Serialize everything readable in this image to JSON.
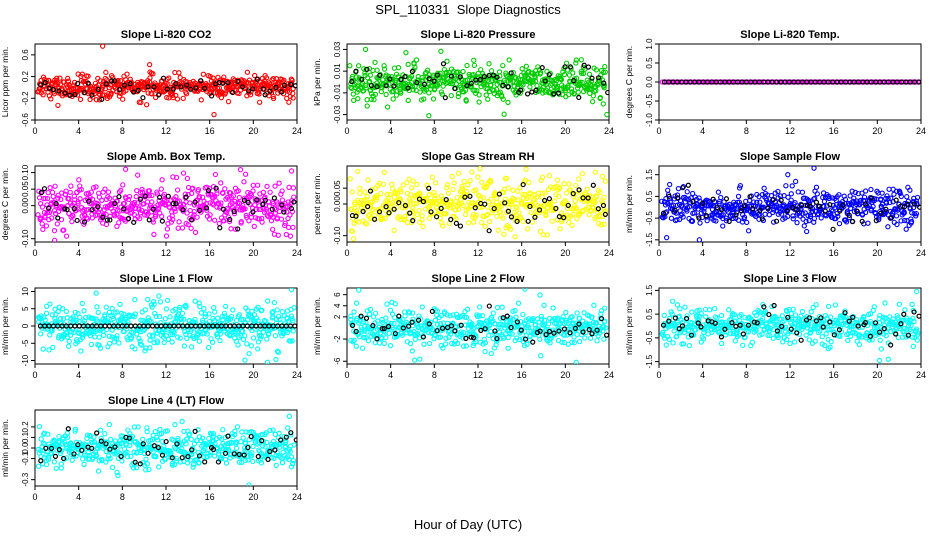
{
  "title": "SPL_110331  Slope Diagnostics",
  "xlabel": "Hour of Day (UTC)",
  "chart_data": [
    {
      "type": "scatter",
      "title": "Slope Li-820 CO2",
      "ylabel": "Licor ppm per min.",
      "color": "#ff0000",
      "xlim": [
        0,
        24
      ],
      "xticks": [
        0,
        4,
        8,
        12,
        16,
        20,
        24
      ],
      "ylim": [
        -0.6,
        0.8
      ],
      "yticks": [
        -0.6,
        -0.2,
        0.2,
        0.6
      ],
      "yticklabels": [
        "-0.6",
        "-0.2",
        "0.2",
        "0.6"
      ],
      "spread": 0.11,
      "outliers": [
        [
          6.2,
          0.76
        ],
        [
          16.4,
          -0.5
        ],
        [
          2.1,
          -0.33
        ],
        [
          10.5,
          0.42
        ]
      ],
      "black_pattern": "scatter"
    },
    {
      "type": "scatter",
      "title": "Slope Li-820 Pressure",
      "ylabel": "kPa per min.",
      "color": "#00cc00",
      "xlim": [
        0,
        24
      ],
      "xticks": [
        0,
        4,
        8,
        12,
        16,
        20,
        24
      ],
      "ylim": [
        -0.035,
        0.035
      ],
      "yticks": [
        -0.03,
        -0.01,
        0.01,
        0.03
      ],
      "yticklabels": [
        "-0.03",
        "-0.01",
        "0.01",
        "0.03"
      ],
      "spread": 0.008,
      "outliers": [
        [
          1.7,
          0.03
        ],
        [
          7.5,
          -0.031
        ],
        [
          5.4,
          0.027
        ],
        [
          23.8,
          -0.03
        ]
      ],
      "black_pattern": "scatter"
    },
    {
      "type": "scatter",
      "title": "Slope Li-820 Temp.",
      "ylabel": "degrees C per min.",
      "color": "#ff00ff",
      "xlim": [
        0,
        24
      ],
      "xticks": [
        0,
        4,
        8,
        12,
        16,
        20,
        24
      ],
      "ylim": [
        -1.0,
        1.0
      ],
      "yticks": [
        -1.0,
        -0.5,
        0.0,
        0.5,
        1.0
      ],
      "yticklabels": [
        "-1.0",
        "-0.5",
        "0.0",
        "0.5",
        "1.0"
      ],
      "spread": 0.0,
      "outliers": [],
      "black_pattern": "flat"
    },
    {
      "type": "scatter",
      "title": "Slope Amb. Box Temp.",
      "ylabel": "degrees C per min.",
      "color": "#ff00ff",
      "xlim": [
        0,
        24
      ],
      "xticks": [
        0,
        4,
        8,
        12,
        16,
        20,
        24
      ],
      "ylim": [
        -0.11,
        0.12
      ],
      "yticks": [
        -0.1,
        0.0,
        0.05,
        0.1
      ],
      "yticklabels": [
        "-0.10",
        "0.00",
        "0.05",
        "0.10"
      ],
      "spread": 0.035,
      "outliers": [
        [
          8.3,
          0.11
        ],
        [
          1.8,
          -0.105
        ],
        [
          23.5,
          0.105
        ]
      ],
      "black_pattern": "scatter"
    },
    {
      "type": "scatter",
      "title": "Slope Gas Stream RH",
      "ylabel": "percent per min.",
      "color": "#ffff00",
      "xlim": [
        0,
        24
      ],
      "xticks": [
        0,
        4,
        8,
        12,
        16,
        20,
        24
      ],
      "ylim": [
        -0.12,
        0.12
      ],
      "yticks": [
        -0.1,
        0.0,
        0.05
      ],
      "yticklabels": [
        "-0.10",
        "0.00",
        "0.05"
      ],
      "spread": 0.04,
      "outliers": [
        [
          16.4,
          0.11
        ],
        [
          0.6,
          -0.11
        ]
      ],
      "black_pattern": "scatter"
    },
    {
      "type": "scatter",
      "title": "Slope Sample Flow",
      "ylabel": "ml/min per min.",
      "color": "#0000ff",
      "xlim": [
        0,
        24
      ],
      "xticks": [
        0,
        4,
        8,
        12,
        16,
        20,
        24
      ],
      "ylim": [
        -1.6,
        1.9
      ],
      "yticks": [
        -1.5,
        -0.5,
        0.5,
        1.5
      ],
      "yticklabels": [
        "-1.5",
        "-0.5",
        "0.5",
        "1.5"
      ],
      "spread": 0.4,
      "outliers": [
        [
          14.2,
          1.8
        ],
        [
          3.7,
          -1.5
        ],
        [
          11.8,
          1.5
        ],
        [
          0.7,
          -1.4
        ]
      ],
      "black_pattern": "scatter"
    },
    {
      "type": "scatter",
      "title": "Slope Line 1 Flow",
      "ylabel": "ml/min per min.",
      "color": "#00ffff",
      "xlim": [
        0,
        24
      ],
      "xticks": [
        0,
        4,
        8,
        12,
        16,
        20,
        24
      ],
      "ylim": [
        -11,
        11
      ],
      "yticks": [
        -10,
        -5,
        0,
        5,
        10
      ],
      "yticklabels": [
        "-10",
        "-5",
        "0",
        "5",
        "10"
      ],
      "spread": 3.2,
      "outliers": [
        [
          23.5,
          10.5
        ],
        [
          21.3,
          -10.5
        ],
        [
          5.6,
          9.5
        ]
      ],
      "black_pattern": "flat"
    },
    {
      "type": "scatter",
      "title": "Slope Line 2 Flow",
      "ylabel": "ml/min per min.",
      "color": "#00ffff",
      "xlim": [
        0,
        24
      ],
      "xticks": [
        0,
        4,
        8,
        12,
        16,
        20,
        24
      ],
      "ylim": [
        -6.5,
        7.2
      ],
      "yticks": [
        -6,
        -2,
        2,
        4,
        6
      ],
      "yticklabels": [
        "-6",
        "-2",
        "2",
        "4",
        "6"
      ],
      "spread": 1.8,
      "outliers": [
        [
          16.3,
          7.0
        ],
        [
          6.2,
          -5.8
        ],
        [
          21.0,
          -6.2
        ]
      ],
      "black_pattern": "scatter"
    },
    {
      "type": "scatter",
      "title": "Slope Line 3 Flow",
      "ylabel": "ml/min per min.",
      "color": "#00ffff",
      "xlim": [
        0,
        24
      ],
      "xticks": [
        0,
        4,
        8,
        12,
        16,
        20,
        24
      ],
      "ylim": [
        -1.6,
        1.6
      ],
      "yticks": [
        -1.5,
        -0.5,
        0.5,
        1.5
      ],
      "yticklabels": [
        "-1.5",
        "-0.5",
        "0.5",
        "1.5"
      ],
      "spread": 0.35,
      "outliers": [
        [
          23.6,
          1.45
        ],
        [
          20.2,
          -1.45
        ],
        [
          21.0,
          -1.4
        ]
      ],
      "black_pattern": "scatter"
    },
    {
      "type": "scatter",
      "title": "Slope Line 4 (LT) Flow",
      "ylabel": "ml/min per min.",
      "color": "#00ffff",
      "xlim": [
        0,
        24
      ],
      "xticks": [
        0,
        4,
        8,
        12,
        16,
        20,
        24
      ],
      "ylim": [
        -0.36,
        0.36
      ],
      "yticks": [
        -0.3,
        -0.1,
        0.0,
        0.1,
        0.2
      ],
      "yticklabels": [
        "-0.3",
        "-0.1",
        "0.0",
        "0.1",
        "0.2"
      ],
      "spread": 0.09,
      "outliers": [
        [
          19.6,
          -0.35
        ],
        [
          23.3,
          0.3
        ],
        [
          7.6,
          -0.26
        ]
      ],
      "black_pattern": "scatter"
    }
  ]
}
